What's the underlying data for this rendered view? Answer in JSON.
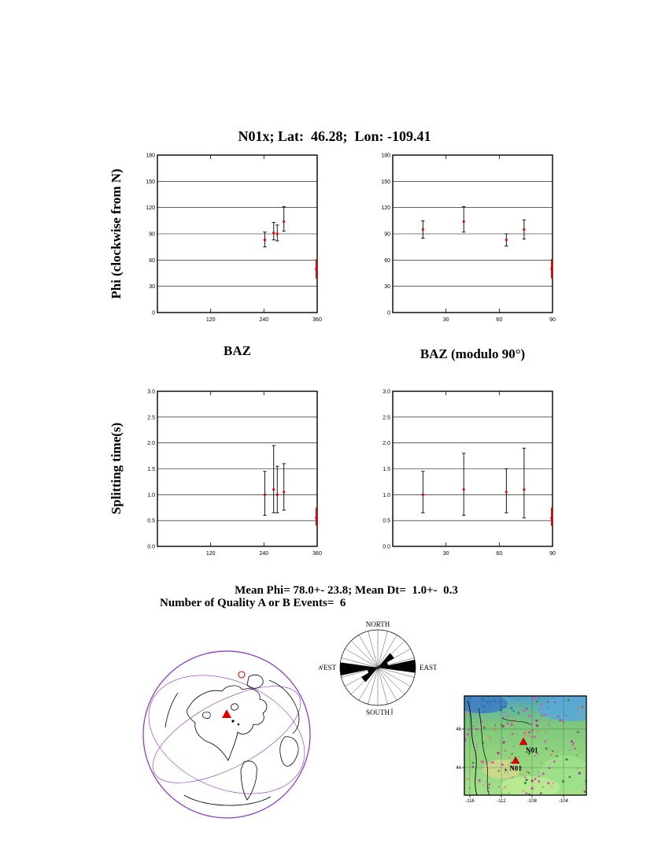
{
  "title": "N01x; Lat:  46.28;  Lon: -109.41",
  "labels": {
    "ylabel_phi": "Phi (clockwise from N)",
    "ylabel_dt": "Splitting time(s)",
    "xlabel_baz": "BAZ",
    "xlabel_baz_mod": "BAZ (modulo 90°)"
  },
  "summary": {
    "line1": "Mean Phi= 78.0+- 23.8; Mean Dt=  1.0+-  0.3",
    "line2": "Number of Quality A or B Events=  6"
  },
  "colors": {
    "marker": "#ee0000",
    "error_bar": "#000000",
    "globe_outline": "#8b2fc9",
    "rose_fill": "#000000",
    "station": "#e00000"
  },
  "chart_data": [
    {
      "id": "phi-vs-baz",
      "type": "scatter",
      "xlabel": "BAZ",
      "ylabel": "Phi (clockwise from N)",
      "xlim": [
        0,
        360
      ],
      "ylim": [
        0,
        180
      ],
      "xticks": [
        120,
        240,
        360
      ],
      "xtick_labels": [
        "120",
        "240",
        "360"
      ],
      "yticks": [
        0,
        30,
        60,
        90,
        120,
        150,
        180
      ],
      "ytick_labels": [
        "0",
        "30",
        "60",
        "90",
        "120",
        "150",
        "180"
      ],
      "grid": true,
      "points": [
        {
          "x": 242,
          "y": 83,
          "lo": 75,
          "hi": 92
        },
        {
          "x": 262,
          "y": 91,
          "lo": 83,
          "hi": 103
        },
        {
          "x": 270,
          "y": 90,
          "lo": 82,
          "hi": 100
        },
        {
          "x": 285,
          "y": 104,
          "lo": 93,
          "hi": 121
        },
        {
          "x": 359,
          "y": 50,
          "lo": 39,
          "hi": 61,
          "edge": true
        }
      ]
    },
    {
      "id": "phi-vs-baz-mod90",
      "type": "scatter",
      "xlabel": "BAZ (modulo 90°)",
      "ylabel": "Phi (clockwise from N)",
      "xlim": [
        0,
        90
      ],
      "ylim": [
        0,
        180
      ],
      "xticks": [
        30,
        60,
        90
      ],
      "xtick_labels": [
        "30",
        "60",
        "90"
      ],
      "yticks": [
        0,
        30,
        60,
        90,
        120,
        150,
        180
      ],
      "ytick_labels": [
        "0",
        "30",
        "60",
        "90",
        "120",
        "150",
        "180"
      ],
      "grid": true,
      "points": [
        {
          "x": 17,
          "y": 95,
          "lo": 85,
          "hi": 105
        },
        {
          "x": 40,
          "y": 104,
          "lo": 92,
          "hi": 121
        },
        {
          "x": 64,
          "y": 83,
          "lo": 76,
          "hi": 90
        },
        {
          "x": 74,
          "y": 95,
          "lo": 84,
          "hi": 106
        },
        {
          "x": 90,
          "y": 50,
          "lo": 39,
          "hi": 61,
          "edge": true
        }
      ]
    },
    {
      "id": "dt-vs-baz",
      "type": "scatter",
      "xlabel": "BAZ",
      "ylabel": "Splitting time(s)",
      "xlim": [
        0,
        360
      ],
      "ylim": [
        0,
        3
      ],
      "xticks": [
        120,
        240,
        360
      ],
      "xtick_labels": [
        "120",
        "240",
        "360"
      ],
      "yticks": [
        0,
        0.5,
        1.0,
        1.5,
        2.0,
        2.5,
        3.0
      ],
      "ytick_labels": [
        "0.0",
        "0.5",
        "1.0",
        "1.5",
        "2.0",
        "2.5",
        "3.0"
      ],
      "grid": true,
      "points": [
        {
          "x": 242,
          "y": 1.0,
          "lo": 0.6,
          "hi": 1.45
        },
        {
          "x": 262,
          "y": 1.1,
          "lo": 0.65,
          "hi": 1.95
        },
        {
          "x": 270,
          "y": 1.0,
          "lo": 0.65,
          "hi": 1.55
        },
        {
          "x": 285,
          "y": 1.05,
          "lo": 0.7,
          "hi": 1.6
        },
        {
          "x": 359,
          "y": 0.55,
          "lo": 0.4,
          "hi": 0.75,
          "edge": true
        }
      ]
    },
    {
      "id": "dt-vs-baz-mod90",
      "type": "scatter",
      "xlabel": "BAZ (modulo 90°)",
      "ylabel": "Splitting time(s)",
      "xlim": [
        0,
        90
      ],
      "ylim": [
        0,
        3
      ],
      "xticks": [
        30,
        60,
        90
      ],
      "xtick_labels": [
        "30",
        "60",
        "90"
      ],
      "yticks": [
        0,
        0.5,
        1.0,
        1.5,
        2.0,
        2.5,
        3.0
      ],
      "ytick_labels": [
        "0.0",
        "0.5",
        "1.0",
        "1.5",
        "2.0",
        "2.5",
        "3.0"
      ],
      "grid": true,
      "points": [
        {
          "x": 17,
          "y": 1.0,
          "lo": 0.65,
          "hi": 1.45
        },
        {
          "x": 40,
          "y": 1.1,
          "lo": 0.6,
          "hi": 1.8
        },
        {
          "x": 64,
          "y": 1.05,
          "lo": 0.65,
          "hi": 1.5
        },
        {
          "x": 74,
          "y": 1.1,
          "lo": 0.55,
          "hi": 1.9
        },
        {
          "x": 90,
          "y": 0.55,
          "lo": 0.4,
          "hi": 0.75,
          "edge": true
        }
      ]
    }
  ],
  "rose": {
    "labels": {
      "n": "NORTH",
      "e": "EAST",
      "s": "SOUTH",
      "w": "WEST"
    },
    "n_spokes": 24,
    "petals": [
      {
        "az_start": 78,
        "az_end": 98,
        "r": 1.0
      },
      {
        "az_start": 258,
        "az_end": 278,
        "r": 1.0
      },
      {
        "az_start": 40,
        "az_end": 60,
        "r": 0.5
      },
      {
        "az_start": 220,
        "az_end": 240,
        "r": 0.5
      },
      {
        "az_start": 60,
        "az_end": 78,
        "r": 0.28
      },
      {
        "az_start": 240,
        "az_end": 258,
        "r": 0.28
      }
    ]
  },
  "globe": {
    "station_marker": "red-triangle",
    "event_marker": "red-circle"
  },
  "map": {
    "x_tick_labels": [
      "-116",
      "-112",
      "-108",
      "-104"
    ],
    "y_tick_labels": [
      "46",
      "44"
    ],
    "stations": [
      {
        "label": "N01",
        "fx": 0.484,
        "fy": 0.46,
        "label_side": "right"
      },
      {
        "label": "N01",
        "fx": 0.42,
        "fy": 0.65,
        "label_side": "below"
      }
    ]
  }
}
